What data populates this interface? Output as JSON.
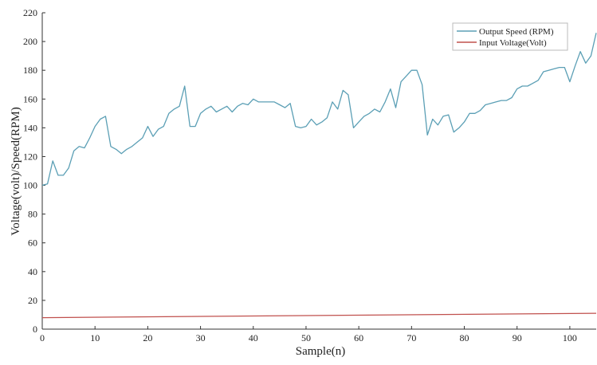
{
  "chart_data": {
    "type": "line",
    "title": "",
    "xlabel": "Sample(n)",
    "ylabel": "Voltage(volt)/Speed(RPM)",
    "xlim": [
      0,
      105
    ],
    "ylim": [
      0,
      220
    ],
    "xticks": [
      0,
      10,
      20,
      30,
      40,
      50,
      60,
      70,
      80,
      90,
      100
    ],
    "yticks": [
      0,
      20,
      40,
      60,
      80,
      100,
      120,
      140,
      160,
      180,
      200,
      220
    ],
    "grid": false,
    "legend_position": "top-right",
    "series": [
      {
        "name": "Output Speed (RPM)",
        "color": "#5b9fb5",
        "x": [
          0,
          1,
          2,
          3,
          4,
          5,
          6,
          7,
          8,
          9,
          10,
          11,
          12,
          13,
          14,
          15,
          16,
          17,
          18,
          19,
          20,
          21,
          22,
          23,
          24,
          25,
          26,
          27,
          28,
          29,
          30,
          31,
          32,
          33,
          34,
          35,
          36,
          37,
          38,
          39,
          40,
          41,
          42,
          43,
          44,
          45,
          46,
          47,
          48,
          49,
          50,
          51,
          52,
          53,
          54,
          55,
          56,
          57,
          58,
          59,
          60,
          61,
          62,
          63,
          64,
          65,
          66,
          67,
          68,
          69,
          70,
          71,
          72,
          73,
          74,
          75,
          76,
          77,
          78,
          79,
          80,
          81,
          82,
          83,
          84,
          85,
          86,
          87,
          88,
          89,
          90,
          91,
          92,
          93,
          94,
          95,
          96,
          97,
          98,
          99,
          100,
          101,
          102,
          103,
          104,
          105
        ],
        "y": [
          100,
          101,
          117,
          107,
          107,
          112,
          124,
          127,
          126,
          133,
          141,
          146,
          148,
          127,
          125,
          122,
          125,
          127,
          130,
          133,
          141,
          134,
          139,
          141,
          150,
          153,
          155,
          169,
          141,
          141,
          150,
          153,
          155,
          151,
          153,
          155,
          151,
          155,
          157,
          156,
          160,
          158,
          158,
          158,
          158,
          156,
          154,
          157,
          141,
          140,
          141,
          146,
          142,
          144,
          147,
          158,
          153,
          166,
          163,
          140,
          144,
          148,
          150,
          153,
          151,
          158,
          167,
          154,
          172,
          176,
          180,
          180,
          170,
          135,
          146,
          142,
          148,
          149,
          137,
          140,
          144,
          150,
          150,
          152,
          156,
          157,
          158,
          159,
          159,
          161,
          167,
          169,
          169,
          171,
          173,
          179,
          180,
          181,
          182,
          182,
          172,
          183,
          193,
          185,
          190,
          206
        ]
      },
      {
        "name": "Input Voltage(Volt)",
        "color": "#c0504d",
        "x": [
          0,
          105
        ],
        "y": [
          8,
          11
        ]
      }
    ]
  }
}
